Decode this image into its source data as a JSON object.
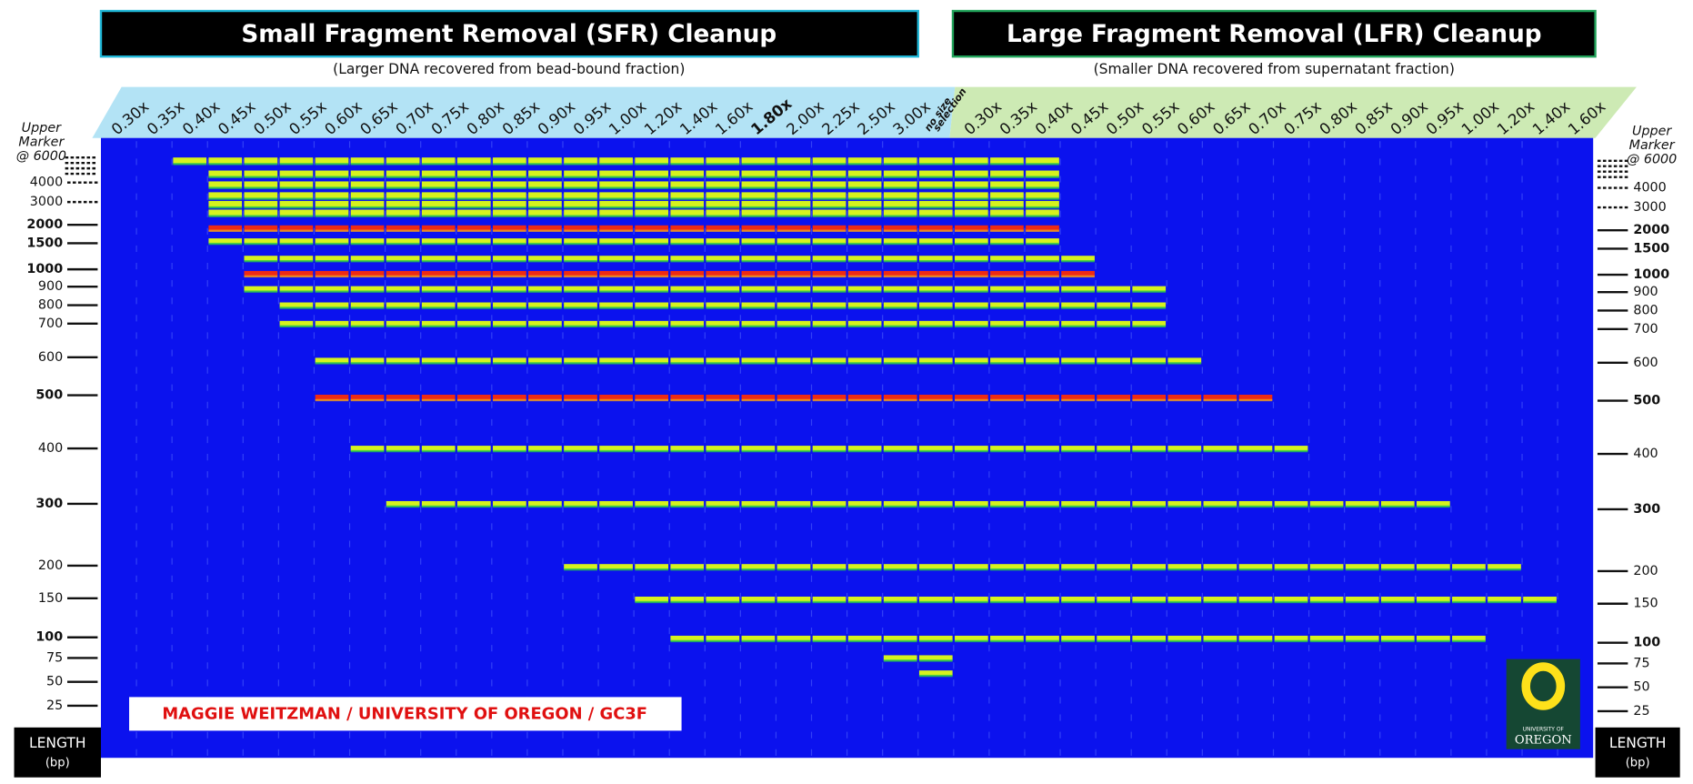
{
  "sfr_header": {
    "title": "Small Fragment Removal (SFR) Cleanup",
    "subtitle": "(Larger DNA recovered from bead-bound fraction)"
  },
  "lfr_header": {
    "title": "Large Fragment Removal (LFR) Cleanup",
    "subtitle": "(Smaller DNA recovered from supernatant fraction)"
  },
  "sfr_lanes": [
    "0.30x",
    "0.35x",
    "0.40x",
    "0.45x",
    "0.50x",
    "0.55x",
    "0.60x",
    "0.65x",
    "0.70x",
    "0.75x",
    "0.80x",
    "0.85x",
    "0.90x",
    "0.95x",
    "1.00x",
    "1.20x",
    "1.40x",
    "1.60x",
    "1.80x",
    "2.00x",
    "2.25x",
    "2.50x",
    "3.00x"
  ],
  "no_selection_lane": [
    "no size",
    "selection"
  ],
  "lfr_lanes": [
    "0.30x",
    "0.35x",
    "0.40x",
    "0.45x",
    "0.50x",
    "0.55x",
    "0.60x",
    "0.65x",
    "0.70x",
    "0.75x",
    "0.80x",
    "0.85x",
    "0.90x",
    "0.95x",
    "1.00x",
    "1.20x",
    "1.40x",
    "1.60x"
  ],
  "ladder": {
    "upper_marker": [
      "Upper",
      "Marker",
      "@ 6000"
    ],
    "sizes": [
      4000,
      3000,
      2000,
      1500,
      1000,
      900,
      800,
      700,
      600,
      500,
      400,
      300,
      200,
      150,
      100,
      75,
      50,
      25
    ]
  },
  "credit": "MAGGIE WEITZMAN / UNIVERSITY OF OREGON / GC3F",
  "logo": [
    "UNIVERSITY OF",
    "OREGON"
  ],
  "length_label": [
    "LENGTH",
    "(bp)"
  ]
}
